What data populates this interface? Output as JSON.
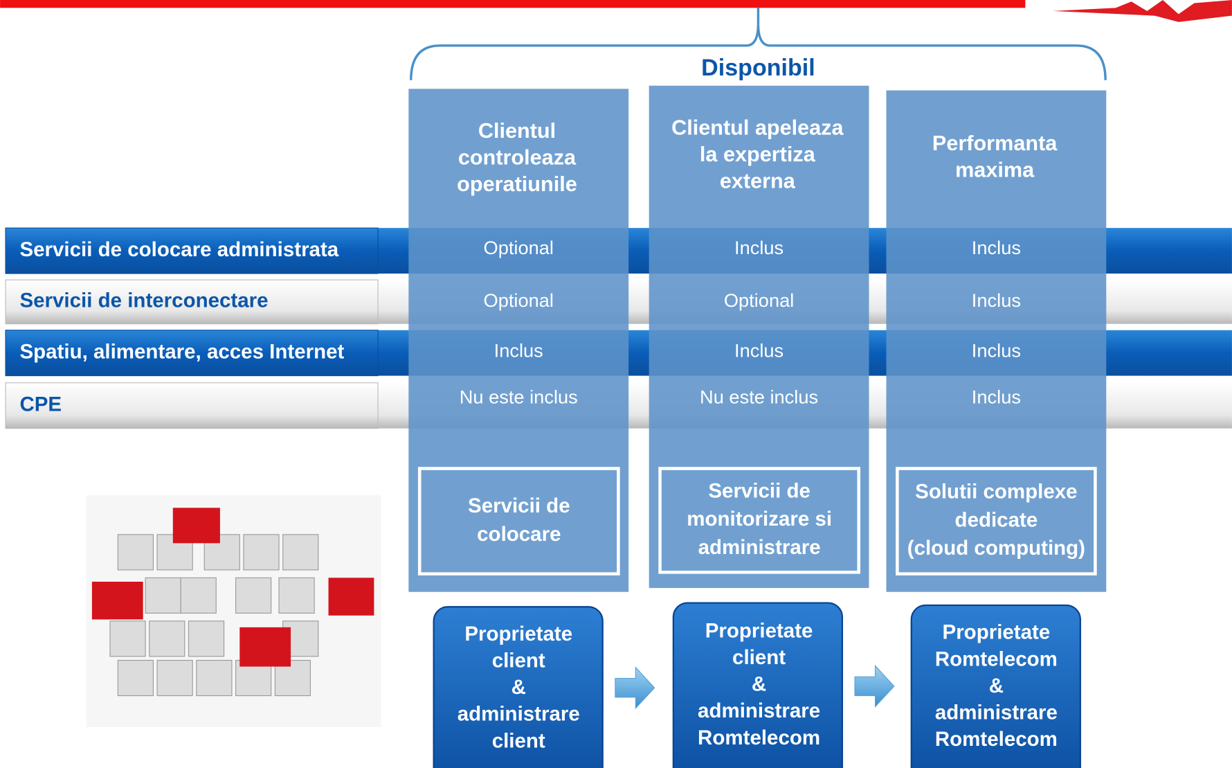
{
  "header": {
    "title": "Disponibil"
  },
  "rows": [
    "Servicii  de colocare administrata",
    "Servicii de interconectare",
    "Spatiu, alimentare, acces Internet",
    "CPE"
  ],
  "columns": [
    {
      "header": [
        "Clientul",
        "controleaza",
        "operatiunile"
      ],
      "cells": [
        "Optional",
        "Optional",
        "Inclus",
        "Nu este inclus"
      ],
      "service": [
        "Servicii de",
        "colocare"
      ],
      "ownership": [
        "Proprietate",
        "client",
        "&",
        "administrare",
        "client"
      ]
    },
    {
      "header": [
        "Clientul apeleaza",
        "la expertiza",
        "externa"
      ],
      "cells": [
        "Inclus",
        "Optional",
        "Inclus",
        "Nu este inclus"
      ],
      "service": [
        "Servicii de",
        "monitorizare si",
        "administrare"
      ],
      "ownership": [
        "Proprietate",
        "client",
        "&",
        "administrare",
        "Romtelecom"
      ]
    },
    {
      "header": [
        "Performanta",
        "maxima"
      ],
      "cells": [
        "Inclus",
        "Inclus",
        "Inclus",
        "Inclus"
      ],
      "service": [
        "Solutii complexe",
        "dedicate",
        "(cloud computing)"
      ],
      "ownership": [
        "Proprietate",
        "Romtelecom",
        "&",
        "administrare",
        "Romtelecom"
      ]
    }
  ]
}
